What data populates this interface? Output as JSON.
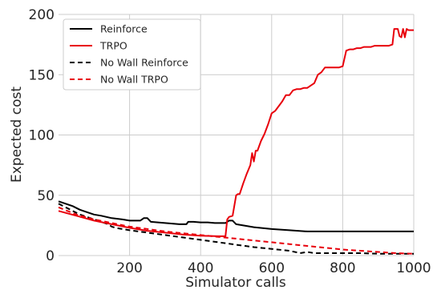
{
  "chart_data": {
    "type": "line",
    "xlabel": "Simulator calls",
    "ylabel": "Expected cost",
    "xlim": [
      0,
      1000
    ],
    "ylim": [
      0,
      200
    ],
    "xticks": [
      200,
      400,
      600,
      800,
      1000
    ],
    "yticks": [
      0,
      50,
      100,
      150,
      200
    ],
    "grid": true,
    "legend_position": "top-left",
    "series": [
      {
        "name": "Reinforce",
        "color": "#000000",
        "dash": "solid",
        "x": [
          0,
          20,
          40,
          60,
          80,
          100,
          120,
          150,
          180,
          200,
          220,
          230,
          240,
          250,
          260,
          280,
          300,
          320,
          340,
          360,
          365,
          370,
          380,
          400,
          420,
          440,
          460,
          470,
          480,
          490,
          500,
          520,
          550,
          600,
          650,
          700,
          720,
          800,
          900,
          1000
        ],
        "y": [
          45,
          43,
          41,
          38,
          36,
          34,
          33,
          31,
          30,
          29,
          29,
          29,
          31,
          31,
          28,
          27.5,
          27,
          26.5,
          26,
          26,
          28,
          28,
          28,
          27.5,
          27.5,
          27,
          27,
          27,
          29,
          29,
          26,
          25,
          23.5,
          22,
          21,
          20,
          20,
          20,
          20,
          20
        ]
      },
      {
        "name": "TRPO",
        "color": "#e8000b",
        "dash": "solid",
        "x": [
          0,
          50,
          100,
          150,
          200,
          250,
          300,
          350,
          400,
          450,
          470,
          475,
          480,
          490,
          500,
          505,
          510,
          520,
          530,
          540,
          545,
          550,
          555,
          560,
          570,
          580,
          590,
          600,
          610,
          620,
          630,
          640,
          650,
          660,
          670,
          680,
          690,
          700,
          710,
          720,
          730,
          740,
          750,
          760,
          770,
          780,
          790,
          800,
          810,
          820,
          830,
          840,
          850,
          860,
          870,
          880,
          890,
          900,
          910,
          920,
          930,
          940,
          945,
          950,
          955,
          960,
          965,
          970,
          975,
          980,
          985,
          990,
          1000
        ],
        "y": [
          37,
          33,
          29,
          26,
          23,
          20.5,
          19,
          17.5,
          16.5,
          16,
          16,
          30,
          32,
          33,
          50,
          51,
          51,
          60,
          68,
          75,
          85,
          78,
          87,
          87,
          95,
          101,
          109,
          118,
          120,
          124,
          128,
          133,
          133,
          137,
          138,
          138,
          139,
          139,
          141,
          143,
          150,
          152,
          156,
          156,
          156,
          156,
          156,
          157,
          170,
          171,
          171,
          172,
          172,
          173,
          173,
          173,
          174,
          174,
          174,
          174,
          174,
          175,
          188,
          188,
          188,
          182,
          181,
          188,
          181,
          188,
          187,
          187,
          187
        ]
      },
      {
        "name": "No Wall Reinforce",
        "color": "#000000",
        "dash": "dashed",
        "x": [
          0,
          20,
          40,
          60,
          80,
          100,
          120,
          140,
          150,
          160,
          180,
          200,
          250,
          300,
          350,
          400,
          450,
          500,
          550,
          600,
          650,
          680,
          700,
          720,
          750,
          800,
          850,
          900,
          950,
          1000
        ],
        "y": [
          43,
          40,
          37,
          34,
          32,
          30,
          28,
          26,
          24,
          23,
          22,
          21,
          19,
          17,
          15,
          13,
          11,
          9,
          7,
          5.5,
          4,
          2,
          3,
          2,
          2,
          2,
          2,
          1.5,
          1.5,
          1.5
        ]
      },
      {
        "name": "No Wall TRPO",
        "color": "#e8000b",
        "dash": "dashed",
        "x": [
          0,
          50,
          100,
          150,
          200,
          250,
          300,
          350,
          400,
          450,
          500,
          550,
          600,
          650,
          700,
          750,
          800,
          850,
          900,
          950,
          1000
        ],
        "y": [
          40,
          34,
          30,
          27,
          24,
          22,
          20,
          18.5,
          17,
          15.5,
          14,
          12.5,
          11,
          9.5,
          8,
          6.5,
          5,
          4,
          3,
          2,
          1.5
        ]
      }
    ]
  }
}
